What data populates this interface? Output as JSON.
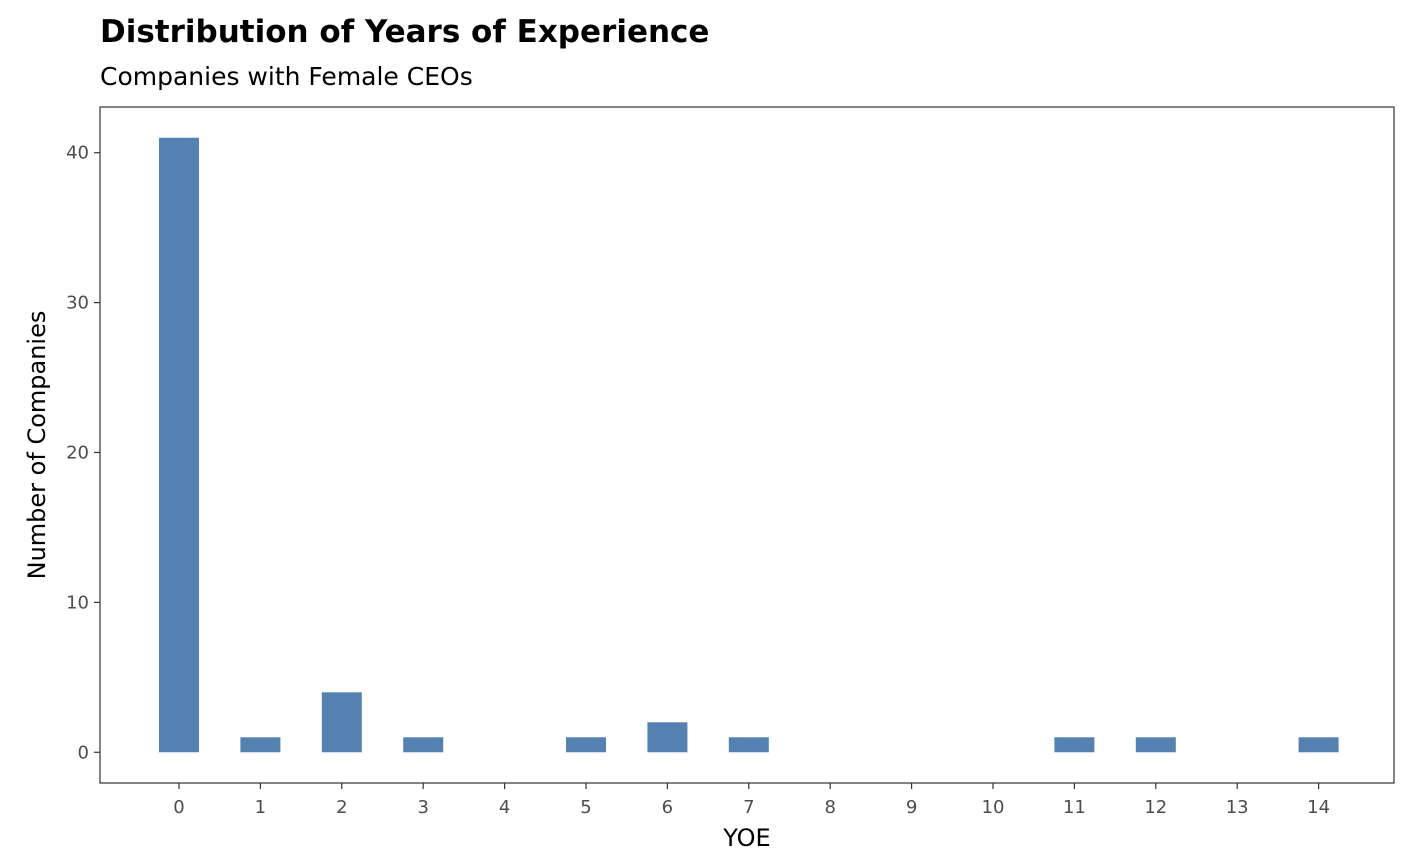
{
  "chart_data": {
    "type": "bar",
    "title": "Distribution of Years of Experience",
    "subtitle": "Companies with Female CEOs",
    "xlabel": "YOE",
    "ylabel": "Number of Companies",
    "categories": [
      "0",
      "1",
      "2",
      "3",
      "4",
      "5",
      "6",
      "7",
      "8",
      "9",
      "10",
      "11",
      "12",
      "13",
      "14"
    ],
    "values": [
      41,
      1,
      4,
      1,
      0,
      1,
      2,
      1,
      0,
      0,
      0,
      1,
      1,
      0,
      1
    ],
    "ylim": [
      -2.05,
      43.05
    ],
    "yticks": [
      0,
      10,
      20,
      30,
      40
    ],
    "yticklabels": [
      "0",
      "10",
      "20",
      "30",
      "40"
    ],
    "bar_color": "#5581B0",
    "grid": false,
    "legend": "none"
  }
}
